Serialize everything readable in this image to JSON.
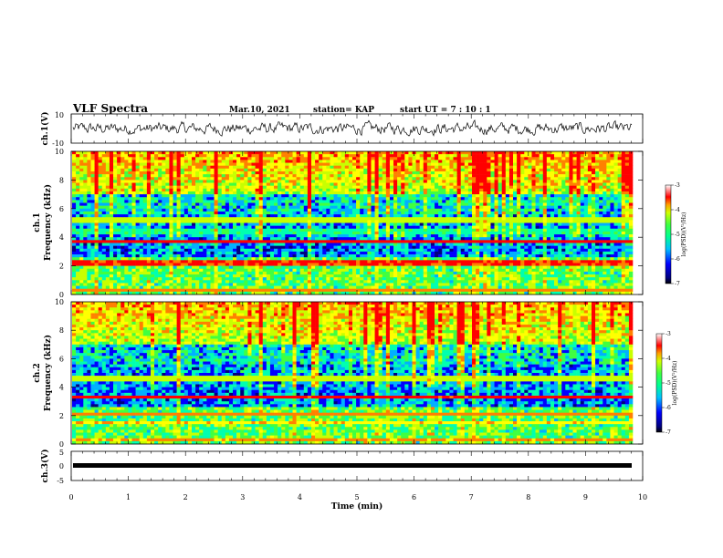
{
  "header": {
    "title": "VLF Spectra",
    "date": "Mar.10, 2021",
    "station": "station= KAP",
    "start": "start  UT =   7 : 10 : 1"
  },
  "chart_data": [
    {
      "type": "line",
      "ylabel": "ch.1(V)",
      "ylim": [
        -10,
        10
      ],
      "y_ticks": [
        "10",
        "-10"
      ],
      "xlim": [
        0,
        10
      ],
      "description": "waveform ch.1, roughly ±3 V noise around 0"
    },
    {
      "type": "heatmap",
      "ylabel": "ch.1\nFrequency (kHz)",
      "ylim": [
        0,
        10
      ],
      "y_ticks": [
        "0",
        "2",
        "4",
        "6",
        "8",
        "10"
      ],
      "xlim": [
        0,
        10
      ],
      "colorbar": {
        "label": "log(PSD)(V²/Hz)",
        "range": [
          -7,
          -3
        ],
        "ticks": [
          "-3",
          "-4",
          "-5",
          "-6",
          "-7"
        ]
      },
      "bands": [
        {
          "f": 3.7,
          "level": -3.2
        },
        {
          "f": 2.2,
          "level": -3.4
        },
        {
          "f": 0.3,
          "level": -3.6
        },
        {
          "f": 5.2,
          "level": -4.6
        },
        {
          "f": 4.4,
          "level": -5.3
        }
      ]
    },
    {
      "type": "heatmap",
      "ylabel": "ch.2\nFrequency (kHz)",
      "ylim": [
        0,
        10
      ],
      "y_ticks": [
        "0",
        "2",
        "4",
        "6",
        "8",
        "10"
      ],
      "xlim": [
        0,
        10
      ],
      "colorbar": {
        "label": "log(PSD)(V²/Hz)",
        "range": [
          -7,
          -3
        ],
        "ticks": [
          "-3",
          "-4",
          "-5",
          "-6",
          "-7"
        ]
      },
      "bands": [
        {
          "f": 3.3,
          "level": -3.3
        },
        {
          "f": 2.1,
          "level": -3.6
        },
        {
          "f": 1.5,
          "level": -4.0
        },
        {
          "f": 4.6,
          "level": -4.5
        },
        {
          "f": 0.3,
          "level": -3.8
        }
      ]
    },
    {
      "type": "line",
      "ylabel": "ch.3(V)",
      "ylim": [
        -5,
        5
      ],
      "y_ticks": [
        "5",
        "0",
        "-5"
      ],
      "xlim": [
        0,
        10
      ],
      "values_approx": 0,
      "description": "flat thick line near 0 V"
    }
  ],
  "x_axis": {
    "label": "Time (min)",
    "ticks": [
      "0",
      "1",
      "2",
      "3",
      "4",
      "5",
      "6",
      "7",
      "8",
      "9",
      "10"
    ]
  },
  "colors": {
    "scale": [
      "#000080",
      "#0000ff",
      "#00b0ff",
      "#00ffb0",
      "#40ff40",
      "#c8ff00",
      "#ffff00",
      "#ff8000",
      "#ff0000",
      "#ffffff"
    ]
  }
}
